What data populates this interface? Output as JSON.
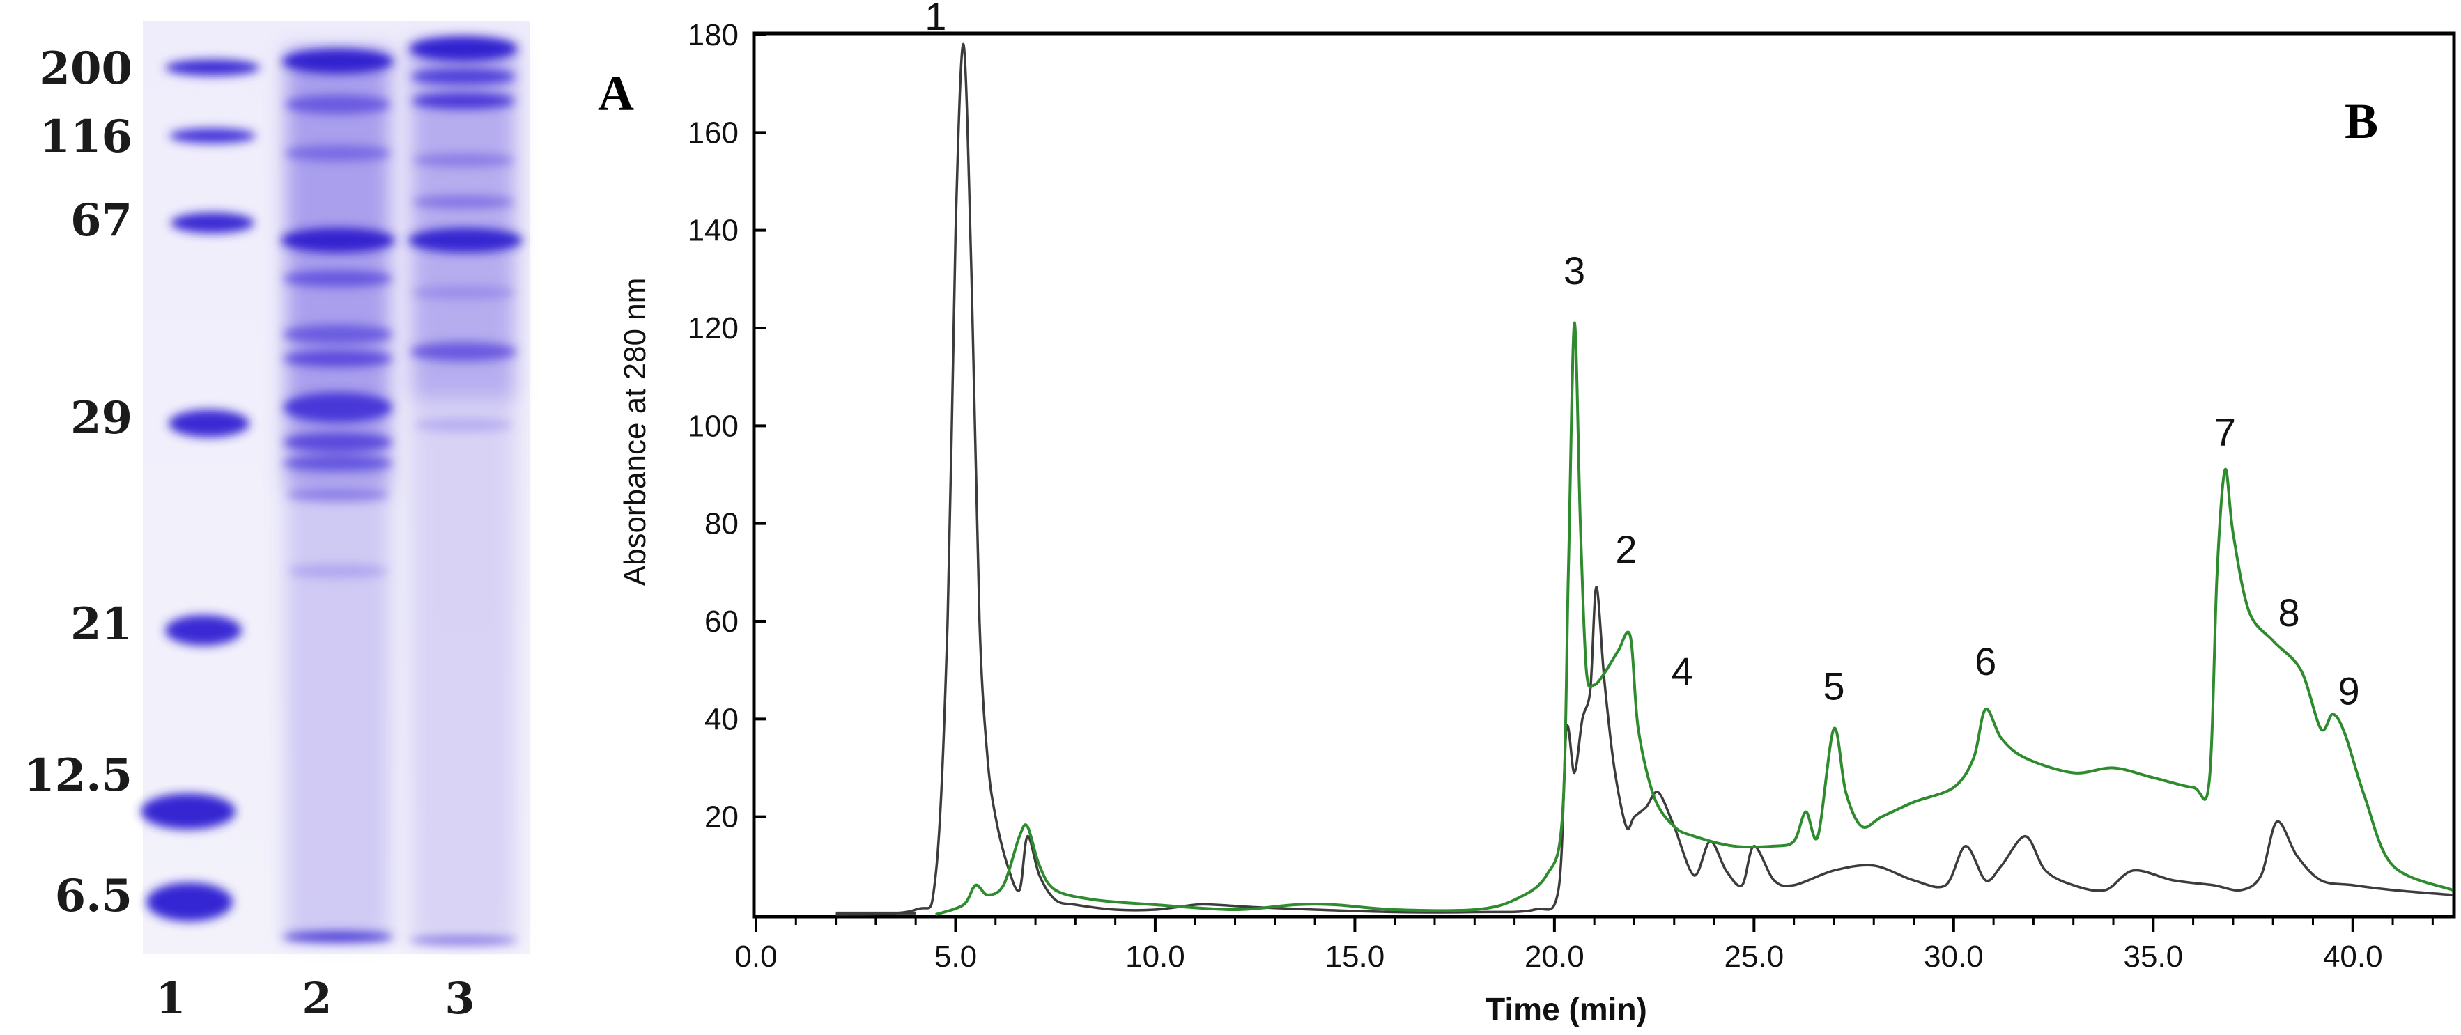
{
  "gel": {
    "panel_letter": "A",
    "mw_markers": [
      {
        "label": "200",
        "kda": 200
      },
      {
        "label": "116",
        "kda": 116
      },
      {
        "label": "67",
        "kda": 67
      },
      {
        "label": "29",
        "kda": 29
      },
      {
        "label": "21",
        "kda": 21
      },
      {
        "label": "12.5",
        "kda": 12.5
      },
      {
        "label": "6.5",
        "kda": 6.5
      }
    ],
    "lanes": [
      "1",
      "2",
      "3"
    ],
    "colors": {
      "band": "#3d2fd6",
      "background": "#ece8f8",
      "lane_smear": "#b7aef0"
    }
  },
  "chart_data": {
    "type": "line",
    "panel_letter": "B",
    "xlabel": "Time (min)",
    "ylabel": "Absorbance at 280 nm",
    "xlim": [
      0,
      42.5
    ],
    "ylim": [
      0,
      180
    ],
    "x_ticks": [
      "0.0",
      "5.0",
      "10.0",
      "15.0",
      "20.0",
      "25.0",
      "30.0",
      "35.0",
      "40.0"
    ],
    "y_ticks": [
      "20",
      "40",
      "60",
      "80",
      "100",
      "120",
      "140",
      "160",
      "180"
    ],
    "grid": false,
    "series": [
      {
        "color": "#3c3c3c",
        "x": [
          2.0,
          4.0,
          4.5,
          4.8,
          5.0,
          5.2,
          5.4,
          5.6,
          5.8,
          6.0,
          6.3,
          6.6,
          6.8,
          7.1,
          7.5,
          8.0,
          9.0,
          10.0,
          11.0,
          11.5,
          12.5,
          14.0,
          16.0,
          18.0,
          19.5,
          20.1,
          20.3,
          20.5,
          20.7,
          20.9,
          21.05,
          21.25,
          21.5,
          21.8,
          22.0,
          22.3,
          22.6,
          23.0,
          23.5,
          23.9,
          24.3,
          24.7,
          25.0,
          25.5,
          26.0,
          27.0,
          28.0,
          29.0,
          29.8,
          30.3,
          30.8,
          31.2,
          31.8,
          32.3,
          33.0,
          33.8,
          34.5,
          35.5,
          36.5,
          37.2,
          37.7,
          38.1,
          38.6,
          39.2,
          40.0,
          41.0,
          42.5
        ],
        "y": [
          0,
          1,
          8,
          60,
          140,
          178,
          130,
          60,
          32,
          20,
          10,
          5,
          16,
          8,
          3,
          2,
          1,
          1,
          2,
          2,
          1.5,
          1,
          0.5,
          0.5,
          1,
          5,
          38,
          29,
          40,
          46,
          67,
          48,
          30,
          18,
          20,
          22,
          25,
          18,
          8,
          15,
          9,
          6,
          14,
          7,
          6,
          9,
          10,
          7,
          6,
          14,
          7,
          10,
          16,
          9,
          6,
          5,
          9,
          7,
          6,
          5,
          8,
          19,
          12,
          7,
          6,
          5,
          4
        ]
      },
      {
        "color": "#2e8b2e",
        "x": [
          4.5,
          5.2,
          5.5,
          5.8,
          6.2,
          6.6,
          6.8,
          7.1,
          7.5,
          8.5,
          10.0,
          12.0,
          13.5,
          14.5,
          16.0,
          18.0,
          19.0,
          19.8,
          20.2,
          20.35,
          20.5,
          20.65,
          20.8,
          21.0,
          21.3,
          21.6,
          21.9,
          22.1,
          22.5,
          23.0,
          23.5,
          24.5,
          25.5,
          26.0,
          26.3,
          26.6,
          27.0,
          27.3,
          27.7,
          28.2,
          29.0,
          30.0,
          30.5,
          30.8,
          31.2,
          31.8,
          33.0,
          34.0,
          35.0,
          36.0,
          36.4,
          36.6,
          36.8,
          37.0,
          37.4,
          38.0,
          38.7,
          39.2,
          39.5,
          39.8,
          40.3,
          41.0,
          42.5
        ],
        "y": [
          0,
          2,
          6,
          4,
          6,
          16,
          18,
          10,
          5,
          3,
          2,
          1,
          2,
          2,
          1,
          1,
          3,
          8,
          20,
          70,
          121,
          80,
          50,
          47,
          50,
          54,
          57,
          38,
          24,
          18,
          16,
          14,
          14,
          15,
          21,
          16,
          38,
          25,
          18,
          20,
          23,
          26,
          32,
          42,
          36,
          32,
          29,
          30,
          28,
          26,
          27,
          70,
          91,
          78,
          62,
          56,
          50,
          38,
          41,
          37,
          24,
          10,
          5
        ]
      }
    ],
    "annotations": [
      {
        "text": "1",
        "x": 4.5,
        "y": 181
      },
      {
        "text": "3",
        "x": 20.5,
        "y": 129
      },
      {
        "text": "2",
        "x": 21.8,
        "y": 72
      },
      {
        "text": "4",
        "x": 23.2,
        "y": 47
      },
      {
        "text": "5",
        "x": 27.0,
        "y": 44
      },
      {
        "text": "6",
        "x": 30.8,
        "y": 49
      },
      {
        "text": "7",
        "x": 36.8,
        "y": 96
      },
      {
        "text": "8",
        "x": 38.4,
        "y": 59
      },
      {
        "text": "9",
        "x": 39.9,
        "y": 43
      }
    ]
  }
}
